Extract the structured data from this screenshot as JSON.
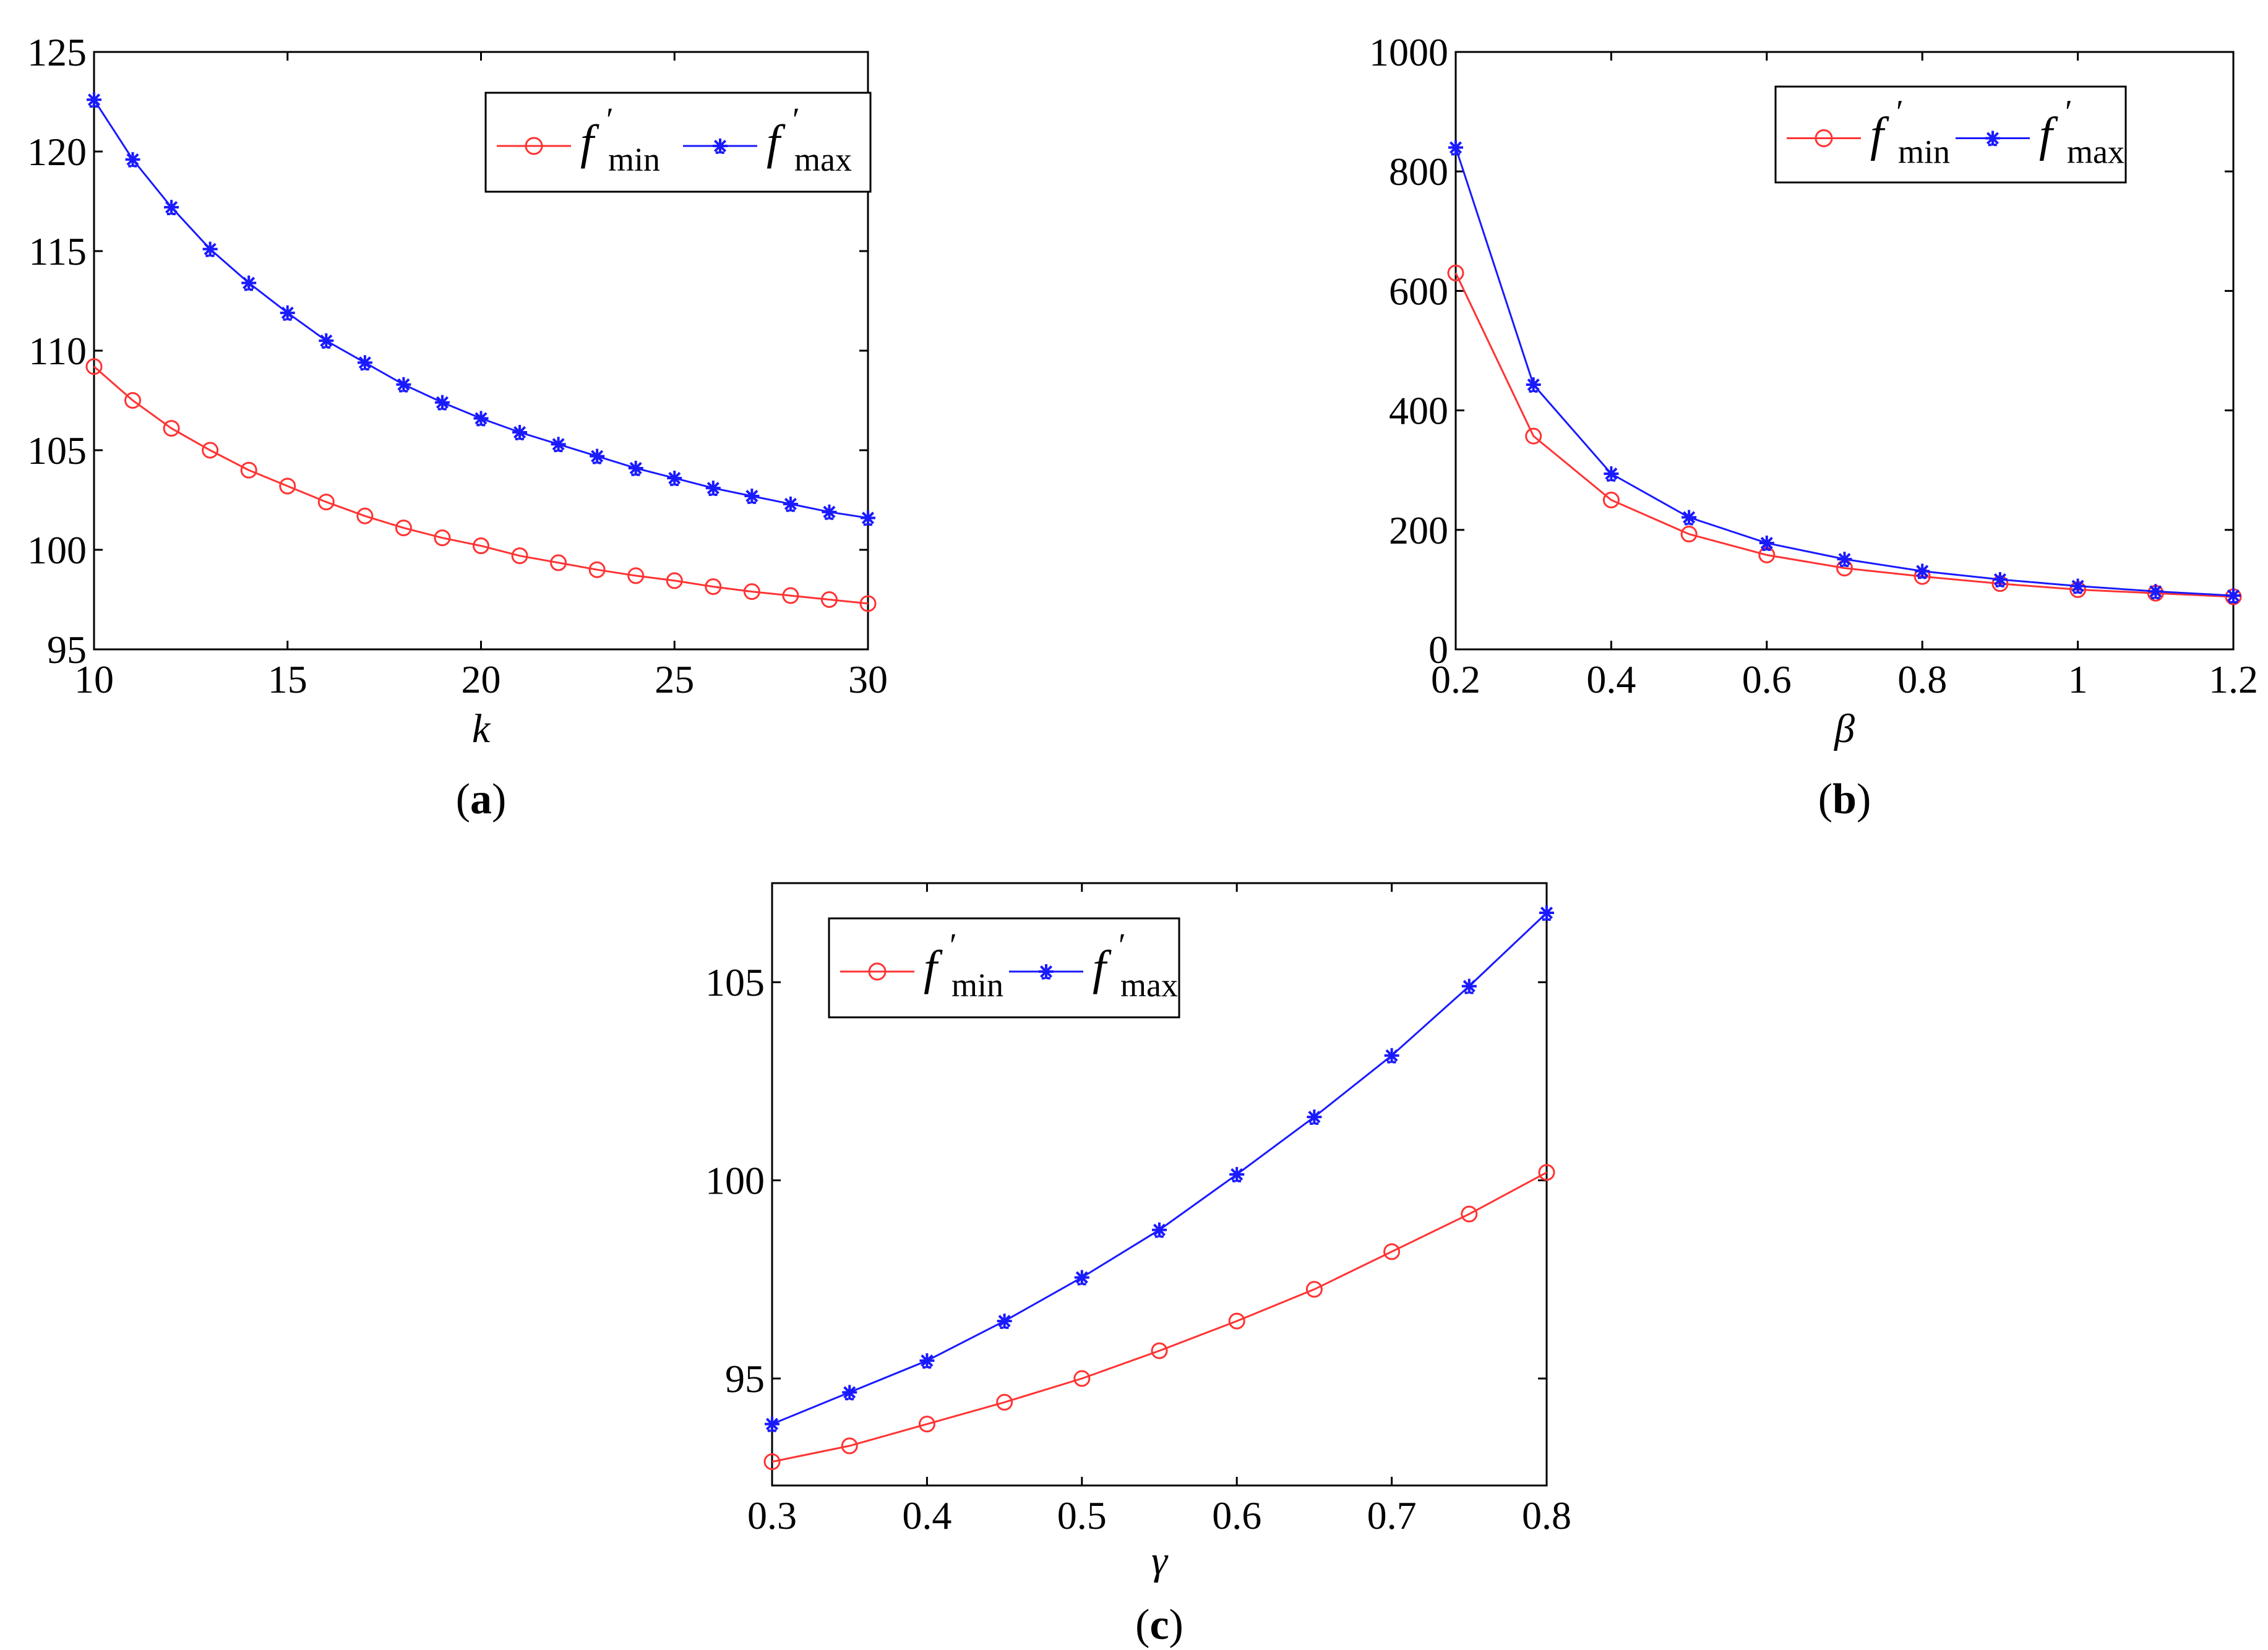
{
  "chart_data": [
    {
      "type": "line",
      "panel_label": "a",
      "xlabel": "k",
      "ylabel": "",
      "xlim": [
        10,
        30
      ],
      "ylim": [
        95,
        125
      ],
      "xticks": [
        10,
        15,
        20,
        25,
        30
      ],
      "xtick_labels": [
        "10",
        "15",
        "20",
        "25",
        "30"
      ],
      "yticks": [
        95,
        100,
        105,
        110,
        115,
        120,
        125
      ],
      "ytick_labels": [
        "95",
        "100",
        "105",
        "110",
        "115",
        "120",
        "125"
      ],
      "legend": {
        "position": "top-right"
      },
      "x": [
        10,
        11,
        12,
        13,
        14,
        15,
        16,
        17,
        18,
        19,
        20,
        21,
        22,
        23,
        24,
        25,
        26,
        27,
        28,
        29,
        30
      ],
      "series": [
        {
          "name": "f′min",
          "legend_main": "f",
          "legend_prime": "′",
          "legend_sub": "min",
          "color": "#ff3333",
          "marker": "circle",
          "values": [
            109.2,
            107.5,
            106.1,
            105.0,
            104.0,
            103.2,
            102.4,
            101.7,
            101.1,
            100.6,
            100.2,
            99.7,
            99.35,
            99.0,
            98.7,
            98.45,
            98.15,
            97.9,
            97.7,
            97.5,
            97.3
          ]
        },
        {
          "name": "f′max",
          "legend_main": "f",
          "legend_prime": "′",
          "legend_sub": "max",
          "color": "#1a1aff",
          "marker": "star",
          "values": [
            122.6,
            119.6,
            117.2,
            115.1,
            113.4,
            111.9,
            110.5,
            109.4,
            108.3,
            107.4,
            106.6,
            105.9,
            105.3,
            104.7,
            104.1,
            103.6,
            103.1,
            102.7,
            102.3,
            101.9,
            101.6
          ]
        }
      ]
    },
    {
      "type": "line",
      "panel_label": "b",
      "xlabel": "β",
      "ylabel": "",
      "xlim": [
        0.2,
        1.2
      ],
      "ylim": [
        0,
        1000
      ],
      "xticks": [
        0.2,
        0.4,
        0.6,
        0.8,
        1.0,
        1.2
      ],
      "xtick_labels": [
        "0.2",
        "0.4",
        "0.6",
        "0.8",
        "1",
        "1.2"
      ],
      "yticks": [
        0,
        200,
        400,
        600,
        800,
        1000
      ],
      "ytick_labels": [
        "0",
        "200",
        "400",
        "600",
        "800",
        "1000"
      ],
      "legend": {
        "position": "top-right"
      },
      "x": [
        0.2,
        0.3,
        0.4,
        0.5,
        0.6,
        0.7,
        0.8,
        0.9,
        1.0,
        1.1,
        1.2
      ],
      "series": [
        {
          "name": "f′min",
          "legend_main": "f",
          "legend_prime": "′",
          "legend_sub": "min",
          "color": "#ff3333",
          "marker": "circle",
          "values": [
            630,
            357,
            250,
            193,
            158,
            136,
            122,
            110,
            100,
            94,
            88
          ]
        },
        {
          "name": "f′max",
          "legend_main": "f",
          "legend_prime": "′",
          "legend_sub": "max",
          "color": "#1a1aff",
          "marker": "star",
          "values": [
            840,
            443,
            294,
            221,
            178,
            151,
            131,
            117,
            106,
            97,
            90
          ]
        }
      ]
    },
    {
      "type": "line",
      "panel_label": "c",
      "xlabel": "γ",
      "ylabel": "",
      "xlim": [
        0.3,
        0.8
      ],
      "ylim": [
        92.3,
        107.5
      ],
      "xticks": [
        0.3,
        0.4,
        0.5,
        0.6,
        0.7,
        0.8
      ],
      "xtick_labels": [
        "0.3",
        "0.4",
        "0.5",
        "0.6",
        "0.7",
        "0.8"
      ],
      "yticks": [
        95,
        100,
        105
      ],
      "ytick_labels": [
        "95",
        "100",
        "105"
      ],
      "legend": {
        "position": "top-left"
      },
      "x": [
        0.3,
        0.35,
        0.4,
        0.45,
        0.5,
        0.55,
        0.6,
        0.65,
        0.7,
        0.75,
        0.8
      ],
      "series": [
        {
          "name": "f′min",
          "legend_main": "f",
          "legend_prime": "′",
          "legend_sub": "min",
          "color": "#ff3333",
          "marker": "circle",
          "values": [
            92.9,
            93.3,
            93.85,
            94.4,
            95.0,
            95.7,
            96.45,
            97.25,
            98.2,
            99.15,
            100.2
          ]
        },
        {
          "name": "f′max",
          "legend_main": "f",
          "legend_prime": "′",
          "legend_sub": "max",
          "color": "#1a1aff",
          "marker": "star",
          "values": [
            93.85,
            94.65,
            95.45,
            96.45,
            97.55,
            98.75,
            100.15,
            101.6,
            103.15,
            104.9,
            106.75
          ]
        }
      ]
    }
  ]
}
